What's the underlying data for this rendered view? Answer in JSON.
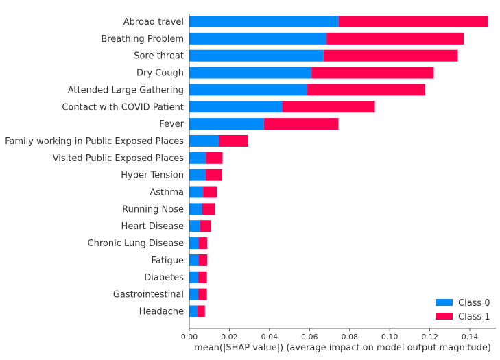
{
  "chart_data": {
    "type": "bar",
    "orientation": "horizontal",
    "stacked": true,
    "title": "",
    "xlabel": "mean(|SHAP value|) (average impact on model output magnitude)",
    "ylabel": "",
    "xlim": [
      0.0,
      0.153
    ],
    "xticks": [
      0.0,
      0.02,
      0.04,
      0.06,
      0.08,
      0.1,
      0.12,
      0.14
    ],
    "xtick_labels": [
      "0.00",
      "0.02",
      "0.04",
      "0.06",
      "0.08",
      "0.10",
      "0.12",
      "0.14"
    ],
    "grid": false,
    "legend": "bottom-right",
    "categories": [
      "Abroad travel",
      "Breathing Problem",
      "Sore throat",
      "Dry Cough",
      "Attended Large Gathering",
      "Contact with COVID Patient",
      "Fever",
      "Family working in Public Exposed Places",
      "Visited Public Exposed Places",
      "Hyper Tension",
      "Asthma",
      "Running Nose",
      "Heart Disease",
      "Chronic Lung Disease",
      "Fatigue",
      "Diabetes",
      "Gastrointestinal",
      "Headache"
    ],
    "series": [
      {
        "name": "Class 0",
        "color": "#008bfb",
        "values": [
          0.0745,
          0.0685,
          0.067,
          0.061,
          0.0589,
          0.0463,
          0.0372,
          0.0147,
          0.0083,
          0.0082,
          0.0069,
          0.0064,
          0.0054,
          0.0045,
          0.0045,
          0.0044,
          0.0044,
          0.0039
        ]
      },
      {
        "name": "Class 1",
        "color": "#ff0051",
        "values": [
          0.0745,
          0.0685,
          0.067,
          0.061,
          0.0589,
          0.0463,
          0.0372,
          0.0147,
          0.0083,
          0.0082,
          0.0069,
          0.0064,
          0.0054,
          0.0045,
          0.0045,
          0.0044,
          0.0044,
          0.0039
        ]
      }
    ]
  }
}
